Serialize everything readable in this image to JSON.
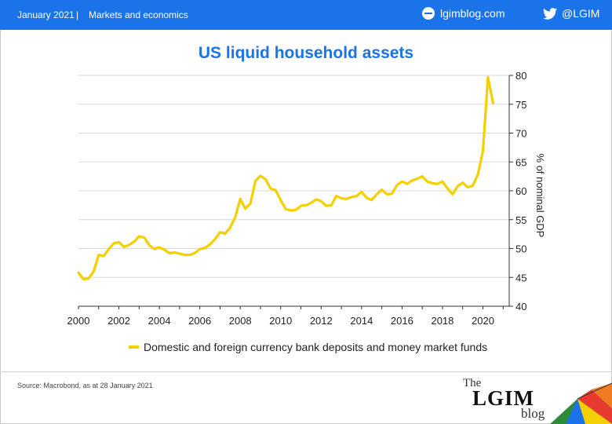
{
  "header": {
    "date": "January 2021",
    "separator": "|",
    "section": "Markets and economics",
    "blog_url": "lgimblog.com",
    "twitter_handle": "@LGIM",
    "background_color": "#1a73e8"
  },
  "footer": {
    "source": "Source: Macrobond, as at 28 January 2021",
    "logo_the": "The",
    "logo_lgim": "LGIM",
    "logo_blog": "blog"
  },
  "chart_data": {
    "type": "line",
    "title": "US liquid household assets",
    "xlabel": "",
    "ylabel": "% of nominal GDP",
    "xlim": [
      2000,
      2021.3
    ],
    "ylim": [
      40,
      80
    ],
    "x_ticks": [
      "2000",
      "2002",
      "2004",
      "2006",
      "2008",
      "2010",
      "2012",
      "2014",
      "2016",
      "2018",
      "2020"
    ],
    "y_ticks": [
      "40",
      "45",
      "50",
      "55",
      "60",
      "65",
      "70",
      "75",
      "80"
    ],
    "grid": "horizontal",
    "legend_position": "bottom",
    "series": [
      {
        "name": "Domestic and foreign currency bank deposits and money market funds",
        "color": "#f5d000",
        "points": [
          [
            2000.0,
            45.8
          ],
          [
            2000.25,
            44.7
          ],
          [
            2000.5,
            44.8
          ],
          [
            2000.75,
            46.0
          ],
          [
            2001.0,
            48.9
          ],
          [
            2001.25,
            48.7
          ],
          [
            2001.5,
            49.9
          ],
          [
            2001.75,
            50.9
          ],
          [
            2002.0,
            51.1
          ],
          [
            2002.25,
            50.3
          ],
          [
            2002.5,
            50.6
          ],
          [
            2002.75,
            51.2
          ],
          [
            2003.0,
            52.1
          ],
          [
            2003.25,
            51.9
          ],
          [
            2003.5,
            50.6
          ],
          [
            2003.75,
            49.9
          ],
          [
            2004.0,
            50.2
          ],
          [
            2004.25,
            49.8
          ],
          [
            2004.5,
            49.2
          ],
          [
            2004.75,
            49.3
          ],
          [
            2005.0,
            49.1
          ],
          [
            2005.25,
            48.9
          ],
          [
            2005.5,
            48.9
          ],
          [
            2005.75,
            49.2
          ],
          [
            2006.0,
            49.9
          ],
          [
            2006.25,
            50.1
          ],
          [
            2006.5,
            50.7
          ],
          [
            2006.75,
            51.6
          ],
          [
            2007.0,
            52.8
          ],
          [
            2007.25,
            52.6
          ],
          [
            2007.5,
            53.6
          ],
          [
            2007.75,
            55.4
          ],
          [
            2008.0,
            58.6
          ],
          [
            2008.25,
            56.9
          ],
          [
            2008.5,
            57.8
          ],
          [
            2008.75,
            61.7
          ],
          [
            2009.0,
            62.6
          ],
          [
            2009.25,
            62.0
          ],
          [
            2009.5,
            60.4
          ],
          [
            2009.75,
            60.1
          ],
          [
            2010.0,
            58.4
          ],
          [
            2010.25,
            56.8
          ],
          [
            2010.5,
            56.6
          ],
          [
            2010.75,
            56.7
          ],
          [
            2011.0,
            57.4
          ],
          [
            2011.25,
            57.5
          ],
          [
            2011.5,
            57.9
          ],
          [
            2011.75,
            58.5
          ],
          [
            2012.0,
            58.2
          ],
          [
            2012.25,
            57.4
          ],
          [
            2012.5,
            57.5
          ],
          [
            2012.75,
            59.1
          ],
          [
            2013.0,
            58.7
          ],
          [
            2013.25,
            58.6
          ],
          [
            2013.5,
            58.9
          ],
          [
            2013.75,
            59.1
          ],
          [
            2014.0,
            59.8
          ],
          [
            2014.25,
            58.8
          ],
          [
            2014.5,
            58.4
          ],
          [
            2014.75,
            59.4
          ],
          [
            2015.0,
            60.2
          ],
          [
            2015.25,
            59.4
          ],
          [
            2015.5,
            59.5
          ],
          [
            2015.75,
            61.0
          ],
          [
            2016.0,
            61.6
          ],
          [
            2016.25,
            61.2
          ],
          [
            2016.5,
            61.8
          ],
          [
            2016.75,
            62.1
          ],
          [
            2017.0,
            62.5
          ],
          [
            2017.25,
            61.6
          ],
          [
            2017.5,
            61.3
          ],
          [
            2017.75,
            61.2
          ],
          [
            2018.0,
            61.6
          ],
          [
            2018.25,
            60.4
          ],
          [
            2018.5,
            59.4
          ],
          [
            2018.75,
            60.8
          ],
          [
            2019.0,
            61.4
          ],
          [
            2019.25,
            60.6
          ],
          [
            2019.5,
            60.9
          ],
          [
            2019.75,
            62.8
          ],
          [
            2020.0,
            66.9
          ],
          [
            2020.25,
            79.7
          ],
          [
            2020.5,
            75.2
          ]
        ]
      }
    ]
  }
}
